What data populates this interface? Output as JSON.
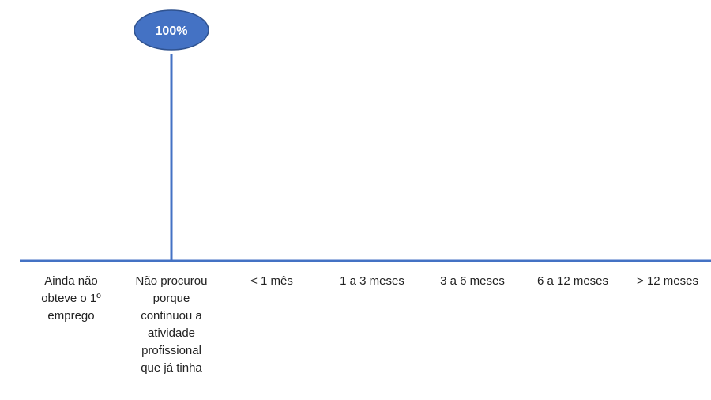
{
  "chart_data": {
    "type": "line",
    "categories": [
      "Ainda não\nobteve o 1º\nemprego",
      "Não procurou\nporque\ncontinuou a\natividade\nprofissional\nque já tinha",
      "< 1  mês",
      "1  a  3 meses",
      "3  a  6 meses",
      "6  a 12 meses",
      "> 12 meses"
    ],
    "series": [
      {
        "values": [
          null,
          100,
          null,
          null,
          null,
          null,
          null
        ],
        "data_labels": [
          null,
          "100%",
          null,
          null,
          null,
          null,
          null
        ]
      }
    ],
    "ylim": [
      0,
      100
    ],
    "grid": false,
    "legend": "none"
  },
  "colors": {
    "line": "#4472C4",
    "label_fill": "#4472C4",
    "label_text": "#ffffff",
    "axis_text": "#222222"
  }
}
